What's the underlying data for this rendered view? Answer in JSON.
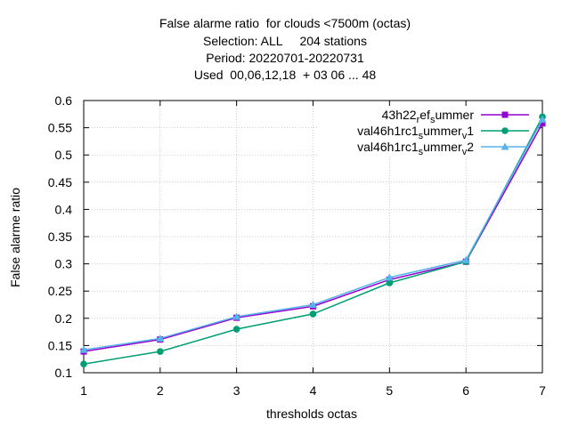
{
  "chart_data": {
    "type": "line",
    "title_lines": [
      "False alarme ratio  for clouds <7500m (octas)",
      "Selection: ALL     204 stations",
      "Period: 20220701-20220731",
      "Used  00,06,12,18  + 03 06 ... 48"
    ],
    "xlabel": "thresholds octas",
    "ylabel": "False alarme ratio",
    "x": [
      1,
      2,
      3,
      4,
      5,
      6,
      7
    ],
    "xlim": [
      1,
      7
    ],
    "ylim": [
      0.1,
      0.6
    ],
    "x_ticks": [
      "1",
      "2",
      "3",
      "4",
      "5",
      "6",
      "7"
    ],
    "y_ticks": [
      "0.1",
      "0.15",
      "0.2",
      "0.25",
      "0.3",
      "0.35",
      "0.4",
      "0.45",
      "0.5",
      "0.55",
      "0.6"
    ],
    "grid": true,
    "legend_position": "top-right",
    "series": [
      {
        "name": "43h22 ref summer",
        "legend": {
          "t1": "43h22",
          "s1": "r",
          "t2": "ef",
          "s2": "s",
          "t3": "ummer",
          "s3": "",
          "t4": ""
        },
        "color": "#9400d3",
        "marker": "square",
        "values": [
          0.139,
          0.161,
          0.201,
          0.222,
          0.271,
          0.304,
          0.558
        ]
      },
      {
        "name": "val46h1rc1 summer v1",
        "legend": {
          "t1": "val46h1rc1",
          "s1": "s",
          "t2": "ummer",
          "s2": "v",
          "t3": "1",
          "s3": "",
          "t4": ""
        },
        "color": "#009e73",
        "marker": "circle",
        "values": [
          0.116,
          0.139,
          0.18,
          0.208,
          0.265,
          0.304,
          0.57
        ]
      },
      {
        "name": "val46h1rc1 summer v2",
        "legend": {
          "t1": "val46h1rc1",
          "s1": "s",
          "t2": "ummer",
          "s2": "v",
          "t3": "2",
          "s3": "",
          "t4": ""
        },
        "color": "#56b4e9",
        "marker": "triangle",
        "values": [
          0.142,
          0.163,
          0.203,
          0.225,
          0.275,
          0.307,
          0.565
        ]
      }
    ]
  }
}
